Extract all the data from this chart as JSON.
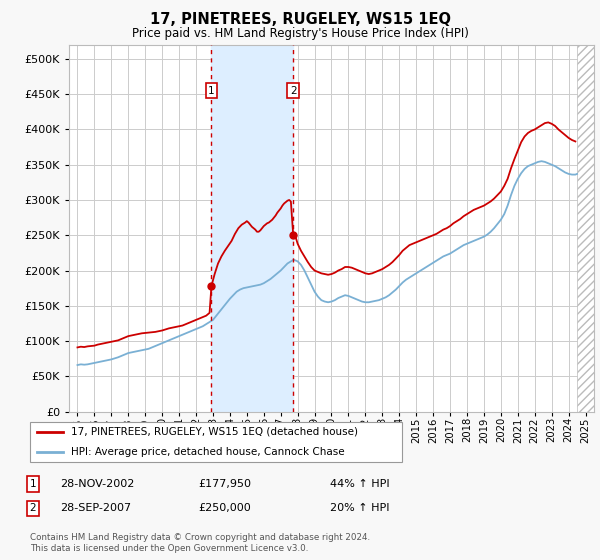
{
  "title": "17, PINETREES, RUGELEY, WS15 1EQ",
  "subtitle": "Price paid vs. HM Land Registry's House Price Index (HPI)",
  "legend_line1": "17, PINETREES, RUGELEY, WS15 1EQ (detached house)",
  "legend_line2": "HPI: Average price, detached house, Cannock Chase",
  "footnote": "Contains HM Land Registry data © Crown copyright and database right 2024.\nThis data is licensed under the Open Government Licence v3.0.",
  "event1_date": "28-NOV-2002",
  "event1_price": "£177,950",
  "event1_hpi": "44% ↑ HPI",
  "event2_date": "28-SEP-2007",
  "event2_price": "£250,000",
  "event2_hpi": "20% ↑ HPI",
  "event1_x": 2002.91,
  "event2_x": 2007.74,
  "event1_y": 177950,
  "event2_y": 250000,
  "price_color": "#cc0000",
  "hpi_color": "#7ab0d4",
  "shade_color": "#ddeeff",
  "grid_color": "#cccccc",
  "bg_color": "#f8f8f8",
  "plot_bg": "#ffffff",
  "ylim": [
    0,
    520000
  ],
  "yticks": [
    0,
    50000,
    100000,
    150000,
    200000,
    250000,
    300000,
    350000,
    400000,
    450000,
    500000
  ],
  "xlim_start": 1994.5,
  "xlim_end": 2025.5,
  "hatched_region_start": 2024.5,
  "hatched_region_end": 2025.5,
  "price_data": [
    [
      1995.0,
      91000
    ],
    [
      1995.2,
      92000
    ],
    [
      1995.4,
      91500
    ],
    [
      1995.6,
      92500
    ],
    [
      1995.8,
      93000
    ],
    [
      1996.0,
      93500
    ],
    [
      1996.2,
      95000
    ],
    [
      1996.4,
      96000
    ],
    [
      1996.6,
      97000
    ],
    [
      1996.8,
      98000
    ],
    [
      1997.0,
      99000
    ],
    [
      1997.2,
      100000
    ],
    [
      1997.4,
      101000
    ],
    [
      1997.6,
      103000
    ],
    [
      1997.8,
      105000
    ],
    [
      1998.0,
      107000
    ],
    [
      1998.2,
      108000
    ],
    [
      1998.4,
      109000
    ],
    [
      1998.6,
      110000
    ],
    [
      1998.8,
      111000
    ],
    [
      1999.0,
      111500
    ],
    [
      1999.2,
      112000
    ],
    [
      1999.4,
      112500
    ],
    [
      1999.6,
      113000
    ],
    [
      1999.8,
      114000
    ],
    [
      2000.0,
      115000
    ],
    [
      2000.2,
      116500
    ],
    [
      2000.4,
      118000
    ],
    [
      2000.6,
      119000
    ],
    [
      2000.8,
      120000
    ],
    [
      2001.0,
      121000
    ],
    [
      2001.2,
      122000
    ],
    [
      2001.4,
      124000
    ],
    [
      2001.6,
      126000
    ],
    [
      2001.8,
      128000
    ],
    [
      2002.0,
      130000
    ],
    [
      2002.2,
      132000
    ],
    [
      2002.4,
      134000
    ],
    [
      2002.6,
      136000
    ],
    [
      2002.8,
      140000
    ],
    [
      2002.91,
      177950
    ],
    [
      2003.1,
      195000
    ],
    [
      2003.3,
      210000
    ],
    [
      2003.5,
      220000
    ],
    [
      2003.7,
      228000
    ],
    [
      2003.9,
      235000
    ],
    [
      2004.1,
      242000
    ],
    [
      2004.3,
      252000
    ],
    [
      2004.5,
      260000
    ],
    [
      2004.7,
      265000
    ],
    [
      2004.9,
      268000
    ],
    [
      2005.0,
      270000
    ],
    [
      2005.1,
      268000
    ],
    [
      2005.2,
      265000
    ],
    [
      2005.3,
      262000
    ],
    [
      2005.4,
      260000
    ],
    [
      2005.5,
      258000
    ],
    [
      2005.6,
      255000
    ],
    [
      2005.7,
      255000
    ],
    [
      2005.8,
      257000
    ],
    [
      2005.9,
      260000
    ],
    [
      2006.0,
      263000
    ],
    [
      2006.1,
      265000
    ],
    [
      2006.2,
      267000
    ],
    [
      2006.3,
      268000
    ],
    [
      2006.4,
      270000
    ],
    [
      2006.5,
      272000
    ],
    [
      2006.6,
      275000
    ],
    [
      2006.7,
      278000
    ],
    [
      2006.8,
      282000
    ],
    [
      2006.9,
      285000
    ],
    [
      2007.0,
      288000
    ],
    [
      2007.1,
      292000
    ],
    [
      2007.2,
      295000
    ],
    [
      2007.3,
      297000
    ],
    [
      2007.4,
      299000
    ],
    [
      2007.5,
      300000
    ],
    [
      2007.6,
      298000
    ],
    [
      2007.74,
      250000
    ],
    [
      2007.85,
      250000
    ],
    [
      2008.0,
      238000
    ],
    [
      2008.2,
      228000
    ],
    [
      2008.4,
      220000
    ],
    [
      2008.6,
      212000
    ],
    [
      2008.8,
      205000
    ],
    [
      2009.0,
      200000
    ],
    [
      2009.2,
      198000
    ],
    [
      2009.4,
      196000
    ],
    [
      2009.6,
      195000
    ],
    [
      2009.8,
      194000
    ],
    [
      2010.0,
      195000
    ],
    [
      2010.2,
      197000
    ],
    [
      2010.4,
      200000
    ],
    [
      2010.6,
      202000
    ],
    [
      2010.8,
      205000
    ],
    [
      2011.0,
      205000
    ],
    [
      2011.2,
      204000
    ],
    [
      2011.4,
      202000
    ],
    [
      2011.6,
      200000
    ],
    [
      2011.8,
      198000
    ],
    [
      2012.0,
      196000
    ],
    [
      2012.2,
      195000
    ],
    [
      2012.4,
      196000
    ],
    [
      2012.6,
      198000
    ],
    [
      2012.8,
      200000
    ],
    [
      2013.0,
      202000
    ],
    [
      2013.2,
      205000
    ],
    [
      2013.4,
      208000
    ],
    [
      2013.6,
      212000
    ],
    [
      2013.8,
      217000
    ],
    [
      2014.0,
      222000
    ],
    [
      2014.2,
      228000
    ],
    [
      2014.4,
      232000
    ],
    [
      2014.6,
      236000
    ],
    [
      2014.8,
      238000
    ],
    [
      2015.0,
      240000
    ],
    [
      2015.2,
      242000
    ],
    [
      2015.4,
      244000
    ],
    [
      2015.6,
      246000
    ],
    [
      2015.8,
      248000
    ],
    [
      2016.0,
      250000
    ],
    [
      2016.2,
      252000
    ],
    [
      2016.4,
      255000
    ],
    [
      2016.6,
      258000
    ],
    [
      2016.8,
      260000
    ],
    [
      2017.0,
      263000
    ],
    [
      2017.2,
      267000
    ],
    [
      2017.4,
      270000
    ],
    [
      2017.6,
      273000
    ],
    [
      2017.8,
      277000
    ],
    [
      2018.0,
      280000
    ],
    [
      2018.2,
      283000
    ],
    [
      2018.4,
      286000
    ],
    [
      2018.6,
      288000
    ],
    [
      2018.8,
      290000
    ],
    [
      2019.0,
      292000
    ],
    [
      2019.2,
      295000
    ],
    [
      2019.4,
      298000
    ],
    [
      2019.6,
      302000
    ],
    [
      2019.8,
      307000
    ],
    [
      2020.0,
      312000
    ],
    [
      2020.2,
      320000
    ],
    [
      2020.4,
      330000
    ],
    [
      2020.6,
      345000
    ],
    [
      2020.8,
      358000
    ],
    [
      2021.0,
      370000
    ],
    [
      2021.2,
      382000
    ],
    [
      2021.4,
      390000
    ],
    [
      2021.6,
      395000
    ],
    [
      2021.8,
      398000
    ],
    [
      2022.0,
      400000
    ],
    [
      2022.2,
      403000
    ],
    [
      2022.4,
      406000
    ],
    [
      2022.6,
      409000
    ],
    [
      2022.8,
      410000
    ],
    [
      2023.0,
      408000
    ],
    [
      2023.2,
      405000
    ],
    [
      2023.4,
      400000
    ],
    [
      2023.6,
      396000
    ],
    [
      2023.8,
      392000
    ],
    [
      2024.0,
      388000
    ],
    [
      2024.2,
      385000
    ],
    [
      2024.4,
      383000
    ]
  ],
  "hpi_data": [
    [
      1995.0,
      66000
    ],
    [
      1995.2,
      67000
    ],
    [
      1995.4,
      66500
    ],
    [
      1995.6,
      67000
    ],
    [
      1995.8,
      68000
    ],
    [
      1996.0,
      69000
    ],
    [
      1996.2,
      70000
    ],
    [
      1996.4,
      71000
    ],
    [
      1996.6,
      72000
    ],
    [
      1996.8,
      73000
    ],
    [
      1997.0,
      74000
    ],
    [
      1997.2,
      75500
    ],
    [
      1997.4,
      77000
    ],
    [
      1997.6,
      79000
    ],
    [
      1997.8,
      81000
    ],
    [
      1998.0,
      83000
    ],
    [
      1998.2,
      84000
    ],
    [
      1998.4,
      85000
    ],
    [
      1998.6,
      86000
    ],
    [
      1998.8,
      87000
    ],
    [
      1999.0,
      88000
    ],
    [
      1999.2,
      89000
    ],
    [
      1999.4,
      91000
    ],
    [
      1999.6,
      93000
    ],
    [
      1999.8,
      95000
    ],
    [
      2000.0,
      97000
    ],
    [
      2000.2,
      99000
    ],
    [
      2000.4,
      101000
    ],
    [
      2000.6,
      103000
    ],
    [
      2000.8,
      105000
    ],
    [
      2001.0,
      107000
    ],
    [
      2001.2,
      109000
    ],
    [
      2001.4,
      111000
    ],
    [
      2001.6,
      113000
    ],
    [
      2001.8,
      115000
    ],
    [
      2002.0,
      117000
    ],
    [
      2002.2,
      119000
    ],
    [
      2002.4,
      121000
    ],
    [
      2002.6,
      124000
    ],
    [
      2002.8,
      127000
    ],
    [
      2003.0,
      130000
    ],
    [
      2003.2,
      136000
    ],
    [
      2003.4,
      142000
    ],
    [
      2003.6,
      148000
    ],
    [
      2003.8,
      154000
    ],
    [
      2004.0,
      160000
    ],
    [
      2004.2,
      165000
    ],
    [
      2004.4,
      170000
    ],
    [
      2004.6,
      173000
    ],
    [
      2004.8,
      175000
    ],
    [
      2005.0,
      176000
    ],
    [
      2005.2,
      177000
    ],
    [
      2005.4,
      178000
    ],
    [
      2005.6,
      179000
    ],
    [
      2005.8,
      180000
    ],
    [
      2006.0,
      182000
    ],
    [
      2006.2,
      185000
    ],
    [
      2006.4,
      188000
    ],
    [
      2006.6,
      192000
    ],
    [
      2006.8,
      196000
    ],
    [
      2007.0,
      200000
    ],
    [
      2007.2,
      205000
    ],
    [
      2007.4,
      210000
    ],
    [
      2007.6,
      213000
    ],
    [
      2007.74,
      215000
    ],
    [
      2007.8,
      215000
    ],
    [
      2008.0,
      213000
    ],
    [
      2008.2,
      208000
    ],
    [
      2008.4,
      200000
    ],
    [
      2008.6,
      190000
    ],
    [
      2008.8,
      180000
    ],
    [
      2009.0,
      170000
    ],
    [
      2009.2,
      163000
    ],
    [
      2009.4,
      158000
    ],
    [
      2009.6,
      156000
    ],
    [
      2009.8,
      155000
    ],
    [
      2010.0,
      156000
    ],
    [
      2010.2,
      158000
    ],
    [
      2010.4,
      161000
    ],
    [
      2010.6,
      163000
    ],
    [
      2010.8,
      165000
    ],
    [
      2011.0,
      164000
    ],
    [
      2011.2,
      162000
    ],
    [
      2011.4,
      160000
    ],
    [
      2011.6,
      158000
    ],
    [
      2011.8,
      156000
    ],
    [
      2012.0,
      155000
    ],
    [
      2012.2,
      155000
    ],
    [
      2012.4,
      156000
    ],
    [
      2012.6,
      157000
    ],
    [
      2012.8,
      158000
    ],
    [
      2013.0,
      160000
    ],
    [
      2013.2,
      162000
    ],
    [
      2013.4,
      165000
    ],
    [
      2013.6,
      169000
    ],
    [
      2013.8,
      173000
    ],
    [
      2014.0,
      178000
    ],
    [
      2014.2,
      183000
    ],
    [
      2014.4,
      187000
    ],
    [
      2014.6,
      190000
    ],
    [
      2014.8,
      193000
    ],
    [
      2015.0,
      196000
    ],
    [
      2015.2,
      199000
    ],
    [
      2015.4,
      202000
    ],
    [
      2015.6,
      205000
    ],
    [
      2015.8,
      208000
    ],
    [
      2016.0,
      211000
    ],
    [
      2016.2,
      214000
    ],
    [
      2016.4,
      217000
    ],
    [
      2016.6,
      220000
    ],
    [
      2016.8,
      222000
    ],
    [
      2017.0,
      224000
    ],
    [
      2017.2,
      227000
    ],
    [
      2017.4,
      230000
    ],
    [
      2017.6,
      233000
    ],
    [
      2017.8,
      236000
    ],
    [
      2018.0,
      238000
    ],
    [
      2018.2,
      240000
    ],
    [
      2018.4,
      242000
    ],
    [
      2018.6,
      244000
    ],
    [
      2018.8,
      246000
    ],
    [
      2019.0,
      248000
    ],
    [
      2019.2,
      251000
    ],
    [
      2019.4,
      255000
    ],
    [
      2019.6,
      260000
    ],
    [
      2019.8,
      266000
    ],
    [
      2020.0,
      272000
    ],
    [
      2020.2,
      280000
    ],
    [
      2020.4,
      292000
    ],
    [
      2020.6,
      307000
    ],
    [
      2020.8,
      320000
    ],
    [
      2021.0,
      330000
    ],
    [
      2021.2,
      338000
    ],
    [
      2021.4,
      344000
    ],
    [
      2021.6,
      348000
    ],
    [
      2021.8,
      350000
    ],
    [
      2022.0,
      352000
    ],
    [
      2022.2,
      354000
    ],
    [
      2022.4,
      355000
    ],
    [
      2022.6,
      354000
    ],
    [
      2022.8,
      352000
    ],
    [
      2023.0,
      350000
    ],
    [
      2023.2,
      348000
    ],
    [
      2023.4,
      345000
    ],
    [
      2023.6,
      342000
    ],
    [
      2023.8,
      339000
    ],
    [
      2024.0,
      337000
    ],
    [
      2024.2,
      336000
    ],
    [
      2024.4,
      336000
    ],
    [
      2024.5,
      337000
    ]
  ]
}
